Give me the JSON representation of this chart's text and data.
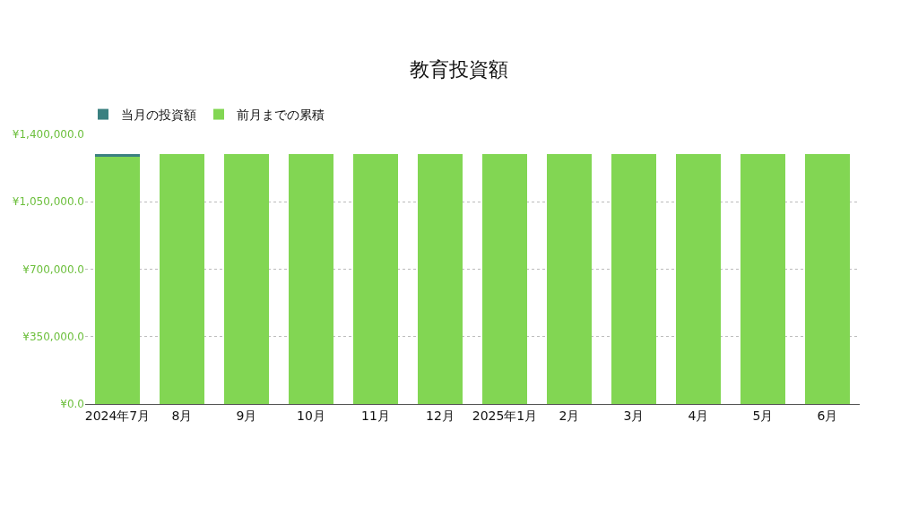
{
  "chart_data": {
    "type": "bar",
    "title": "教育投資額",
    "stacked": true,
    "categories": [
      "2024年7月",
      "8月",
      "9月",
      "10月",
      "11月",
      "12月",
      "2025年1月",
      "2月",
      "3月",
      "4月",
      "5月",
      "6月"
    ],
    "series": [
      {
        "name": "前月までの累積",
        "color": "#82d653",
        "values": [
          1284000,
          1296000,
          1296000,
          1296000,
          1296000,
          1296000,
          1296000,
          1296000,
          1296000,
          1296000,
          1296000,
          1296000
        ]
      },
      {
        "name": "当月の投資額",
        "color": "#3a8080",
        "values": [
          12000,
          0,
          0,
          0,
          0,
          0,
          0,
          0,
          0,
          0,
          0,
          0
        ]
      }
    ],
    "ylim": [
      0,
      1400000
    ],
    "yticks": [
      {
        "value": 0,
        "label": "¥0.0"
      },
      {
        "value": 350000,
        "label": "¥350,000.0"
      },
      {
        "value": 700000,
        "label": "¥700,000.0"
      },
      {
        "value": 1050000,
        "label": "¥1,050,000.0"
      },
      {
        "value": 1400000,
        "label": "¥1,400,000.0"
      }
    ],
    "grid": "y",
    "legend": "top left"
  }
}
